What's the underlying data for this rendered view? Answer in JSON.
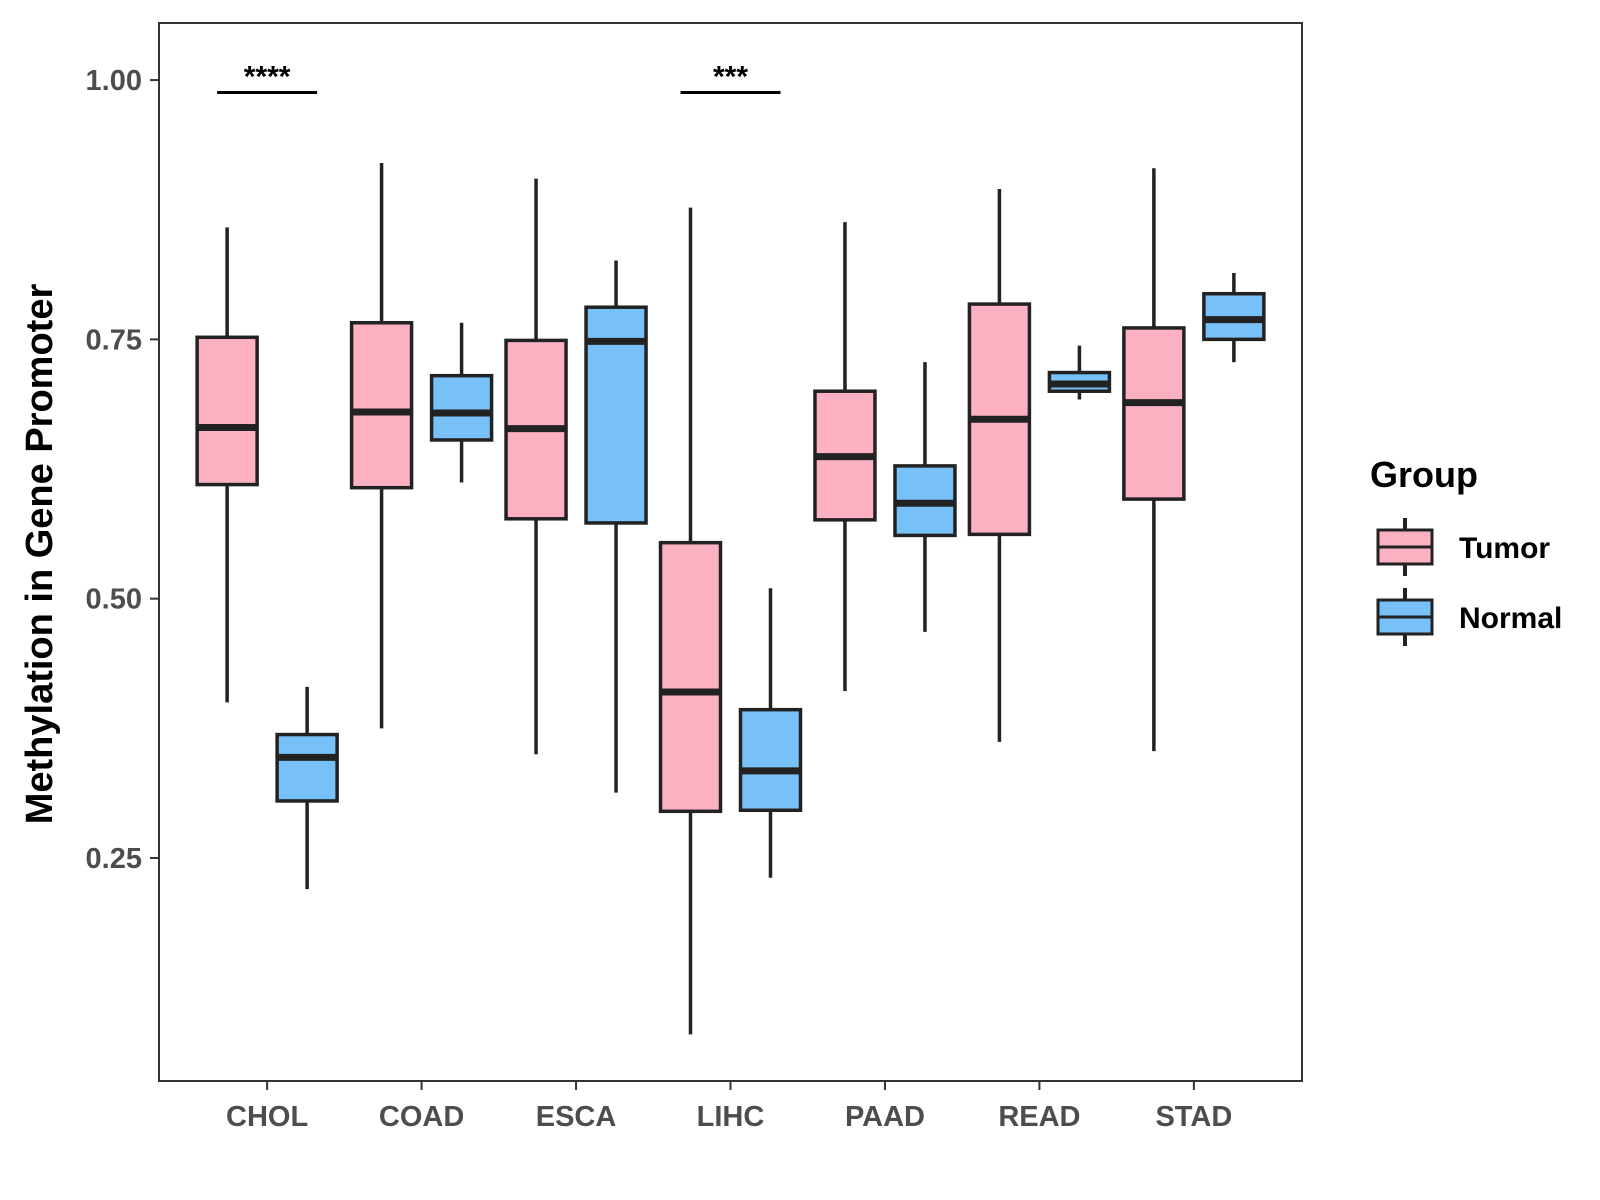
{
  "chart_data": {
    "type": "boxplot",
    "title": "",
    "xlabel": "",
    "ylabel": "Methylation in Gene Promoter",
    "ylim": [
      0.035,
      1.055
    ],
    "yticks": [
      0.25,
      0.5,
      0.75,
      1.0
    ],
    "ytick_labels": [
      "0.25",
      "0.50",
      "0.75",
      "1.00"
    ],
    "categories": [
      "CHOL",
      "COAD",
      "ESCA",
      "LIHC",
      "PAAD",
      "READ",
      "STAD"
    ],
    "legend": {
      "title": "Group",
      "position": "right",
      "entries": [
        {
          "name": "Tumor",
          "color": "#FBB1C2"
        },
        {
          "name": "Normal",
          "color": "#78C0F8"
        }
      ]
    },
    "series": [
      {
        "name": "Tumor",
        "color": "#FBB1C2",
        "boxes": [
          {
            "category": "CHOL",
            "whisker_low": 0.4,
            "q1": 0.61,
            "median": 0.665,
            "q3": 0.752,
            "whisker_high": 0.858
          },
          {
            "category": "COAD",
            "whisker_low": 0.375,
            "q1": 0.607,
            "median": 0.68,
            "q3": 0.766,
            "whisker_high": 0.92
          },
          {
            "category": "ESCA",
            "whisker_low": 0.35,
            "q1": 0.577,
            "median": 0.664,
            "q3": 0.749,
            "whisker_high": 0.905
          },
          {
            "category": "LIHC",
            "whisker_low": 0.08,
            "q1": 0.295,
            "median": 0.41,
            "q3": 0.554,
            "whisker_high": 0.877
          },
          {
            "category": "PAAD",
            "whisker_low": 0.411,
            "q1": 0.576,
            "median": 0.637,
            "q3": 0.7,
            "whisker_high": 0.863
          },
          {
            "category": "READ",
            "whisker_low": 0.362,
            "q1": 0.562,
            "median": 0.673,
            "q3": 0.784,
            "whisker_high": 0.895
          },
          {
            "category": "STAD",
            "whisker_low": 0.353,
            "q1": 0.596,
            "median": 0.689,
            "q3": 0.761,
            "whisker_high": 0.915
          }
        ]
      },
      {
        "name": "Normal",
        "color": "#78C0F8",
        "boxes": [
          {
            "category": "CHOL",
            "whisker_low": 0.22,
            "q1": 0.305,
            "median": 0.347,
            "q3": 0.369,
            "whisker_high": 0.415
          },
          {
            "category": "COAD",
            "whisker_low": 0.612,
            "q1": 0.653,
            "median": 0.679,
            "q3": 0.715,
            "whisker_high": 0.766
          },
          {
            "category": "ESCA",
            "whisker_low": 0.313,
            "q1": 0.573,
            "median": 0.748,
            "q3": 0.781,
            "whisker_high": 0.826
          },
          {
            "category": "LIHC",
            "whisker_low": 0.231,
            "q1": 0.296,
            "median": 0.334,
            "q3": 0.393,
            "whisker_high": 0.51
          },
          {
            "category": "PAAD",
            "whisker_low": 0.468,
            "q1": 0.561,
            "median": 0.592,
            "q3": 0.628,
            "whisker_high": 0.728
          },
          {
            "category": "READ",
            "whisker_low": 0.692,
            "q1": 0.7,
            "median": 0.707,
            "q3": 0.718,
            "whisker_high": 0.744
          },
          {
            "category": "STAD",
            "whisker_low": 0.728,
            "q1": 0.75,
            "median": 0.769,
            "q3": 0.794,
            "whisker_high": 0.814
          }
        ]
      }
    ],
    "annotations": [
      {
        "category": "CHOL",
        "label": "****",
        "y": 0.988
      },
      {
        "category": "LIHC",
        "label": "***",
        "y": 0.988
      }
    ]
  }
}
